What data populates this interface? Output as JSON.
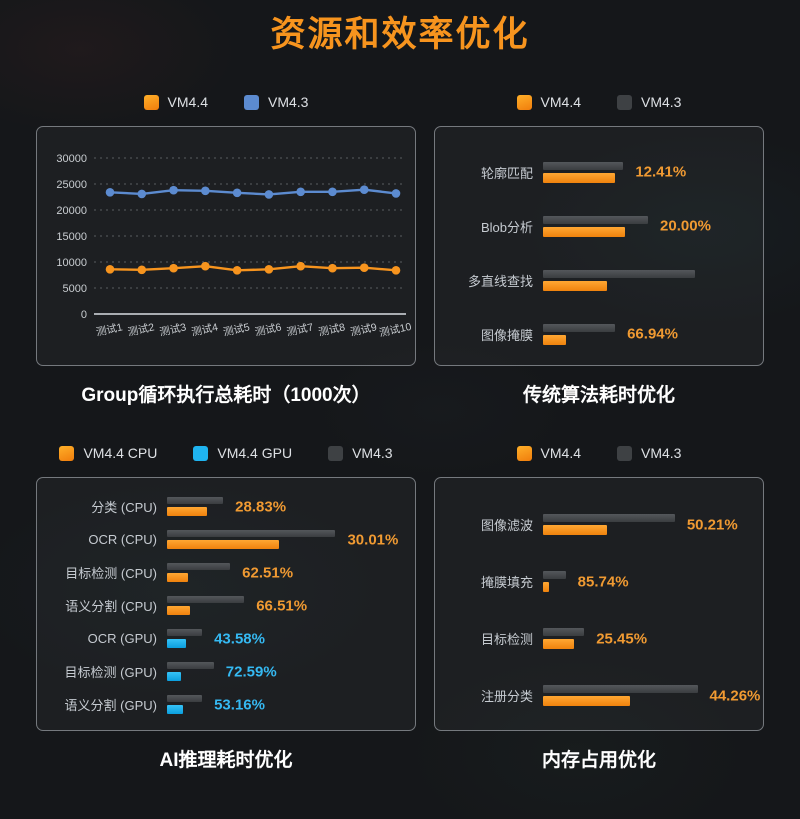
{
  "page_title": "资源和效率优化",
  "colors": {
    "orange": "#F7941E",
    "blue": "#5C8BD0",
    "cyan": "#1FB4F0",
    "legend_gray": "#3E4144",
    "bar_gray": "#46494C",
    "pct_orange": "#F09A32",
    "pct_cyan": "#35B9F2",
    "title_orange": "#F7941E",
    "panel_border": "#75797E",
    "caption_white": "#FFFFFF"
  },
  "chart_data": [
    {
      "id": "group-loop-total-time",
      "type": "line",
      "caption": "Group循环执行总耗时（1000次）",
      "legend": [
        {
          "label": "VM4.4",
          "swatch": "orange"
        },
        {
          "label": "VM4.3",
          "swatch": "blue"
        }
      ],
      "categories": [
        "测试1",
        "测试2",
        "测试3",
        "测试4",
        "测试5",
        "测试6",
        "测试7",
        "测试8",
        "测试9",
        "测试10"
      ],
      "series": [
        {
          "name": "VM4.3",
          "color_key": "blue",
          "values": [
            23400,
            23100,
            23800,
            23700,
            23300,
            23000,
            23500,
            23500,
            23900,
            23200
          ]
        },
        {
          "name": "VM4.4",
          "color_key": "orange",
          "values": [
            8600,
            8500,
            8800,
            9200,
            8400,
            8600,
            9200,
            8800,
            8900,
            8400
          ]
        }
      ],
      "ylim": [
        0,
        30000
      ],
      "yticks": [
        0,
        5000,
        10000,
        15000,
        20000,
        25000,
        30000
      ],
      "grid": "dashed-horizontal",
      "legend_position": "top-center"
    },
    {
      "id": "traditional-algorithm-time",
      "type": "bar",
      "caption": "传统算法耗时优化",
      "legend": [
        {
          "label": "VM4.4",
          "swatch": "orange"
        },
        {
          "label": "VM4.3",
          "swatch": "legend_gray"
        }
      ],
      "rows": [
        {
          "label": "轮廓匹配",
          "base_w": 39,
          "val_w": 35,
          "pct": "12.41%",
          "series": "orange"
        },
        {
          "label": "Blob分析",
          "base_w": 51,
          "val_w": 40,
          "pct": "20.00%",
          "series": "orange"
        },
        {
          "label": "多直线查找",
          "base_w": 74,
          "val_w": 31,
          "pct": "",
          "series": "orange"
        },
        {
          "label": "图像掩膜",
          "base_w": 35,
          "val_w": 11,
          "pct": "66.94%",
          "series": "orange"
        }
      ]
    },
    {
      "id": "ai-inference-time",
      "type": "bar",
      "caption": "AI推理耗时优化",
      "legend": [
        {
          "label": "VM4.4 CPU",
          "swatch": "orange"
        },
        {
          "label": "VM4.4 GPU",
          "swatch": "cyan"
        },
        {
          "label": "VM4.3",
          "swatch": "legend_gray"
        }
      ],
      "rows": [
        {
          "label": "分类 (CPU)",
          "base_w": 24,
          "val_w": 17,
          "pct": "28.83%",
          "series": "orange"
        },
        {
          "label": "OCR (CPU)",
          "base_w": 72,
          "val_w": 48,
          "pct": "30.01%",
          "series": "orange"
        },
        {
          "label": "目标检测 (CPU)",
          "base_w": 27,
          "val_w": 9,
          "pct": "62.51%",
          "series": "orange"
        },
        {
          "label": "语义分割 (CPU)",
          "base_w": 33,
          "val_w": 10,
          "pct": "66.51%",
          "series": "orange"
        },
        {
          "label": "OCR (GPU)",
          "base_w": 15,
          "val_w": 8,
          "pct": "43.58%",
          "series": "cyan"
        },
        {
          "label": "目标检测 (GPU)",
          "base_w": 20,
          "val_w": 6,
          "pct": "72.59%",
          "series": "cyan"
        },
        {
          "label": "语义分割 (GPU)",
          "base_w": 15,
          "val_w": 7,
          "pct": "53.16%",
          "series": "cyan"
        }
      ]
    },
    {
      "id": "memory-usage",
      "type": "bar",
      "caption": "内存占用优化",
      "legend": [
        {
          "label": "VM4.4",
          "swatch": "orange"
        },
        {
          "label": "VM4.3",
          "swatch": "legend_gray"
        }
      ],
      "rows": [
        {
          "label": "图像滤波",
          "base_w": 64,
          "val_w": 31,
          "pct": "50.21%",
          "series": "orange"
        },
        {
          "label": "掩膜填充",
          "base_w": 11,
          "val_w": 3,
          "pct": "85.74%",
          "series": "orange"
        },
        {
          "label": "目标检测",
          "base_w": 20,
          "val_w": 15,
          "pct": "25.45%",
          "series": "orange"
        },
        {
          "label": "注册分类",
          "base_w": 75,
          "val_w": 42,
          "pct": "44.26%",
          "series": "orange"
        }
      ]
    }
  ]
}
